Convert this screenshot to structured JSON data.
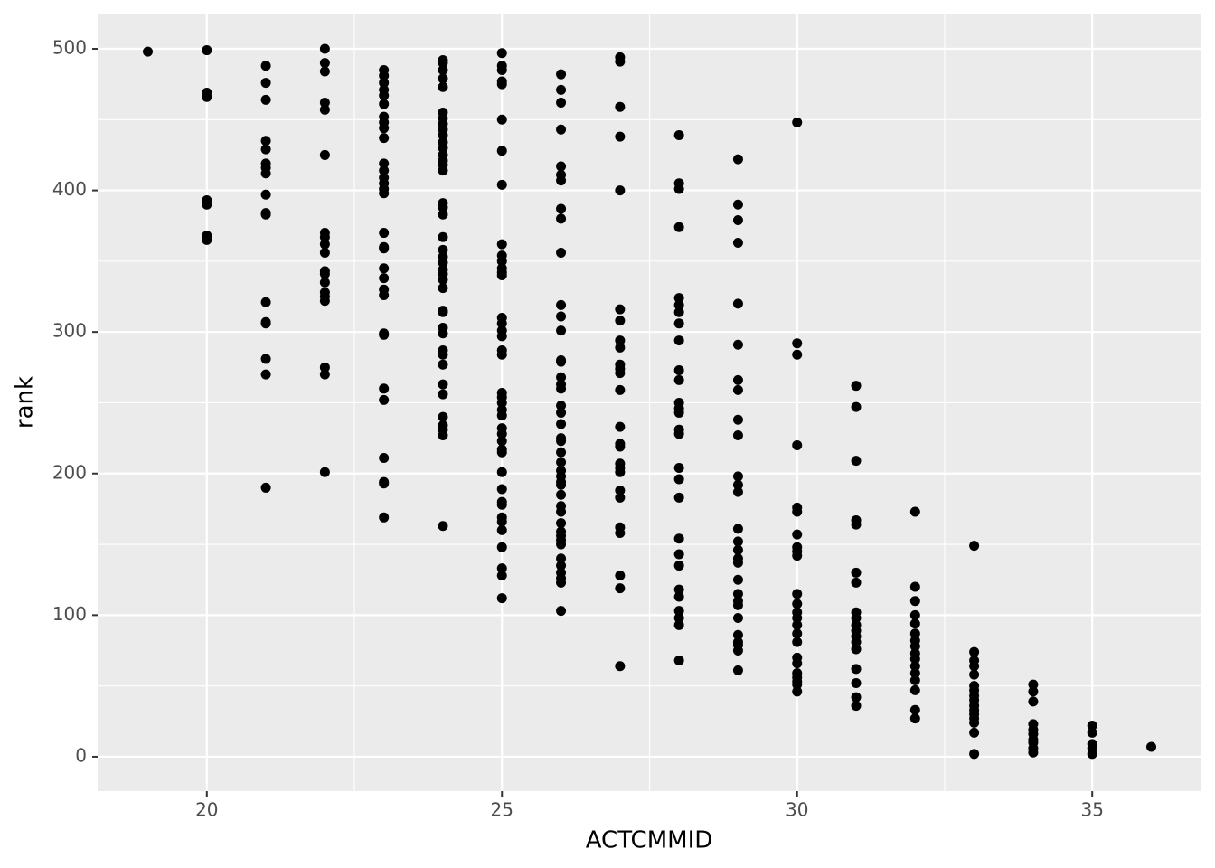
{
  "chart_data": {
    "type": "scatter",
    "x_label": "ACTCMMID",
    "y_label": "rank",
    "color": "#000000",
    "grid": true,
    "xlim": [
      18.15,
      36.85
    ],
    "ylim": [
      -24.3,
      524.9
    ],
    "xticks": [
      20,
      25,
      30,
      35
    ],
    "yticks": [
      0,
      100,
      200,
      300,
      400,
      500
    ],
    "x": [
      19,
      20,
      20,
      20,
      20,
      20,
      20,
      20,
      21,
      21,
      21,
      21,
      21,
      21,
      21,
      21,
      21,
      21,
      21,
      21,
      21,
      21,
      21,
      21,
      21,
      22,
      22,
      22,
      22,
      22,
      22,
      22,
      22,
      22,
      22,
      22,
      22,
      22,
      22,
      22,
      22,
      22,
      22,
      22,
      23,
      23,
      23,
      23,
      23,
      23,
      23,
      23,
      23,
      23,
      23,
      23,
      23,
      23,
      23,
      23,
      23,
      23,
      23,
      23,
      23,
      23,
      23,
      23,
      23,
      23,
      23,
      23,
      23,
      23,
      23,
      24,
      24,
      24,
      24,
      24,
      24,
      24,
      24,
      24,
      24,
      24,
      24,
      24,
      24,
      24,
      24,
      24,
      24,
      24,
      24,
      24,
      24,
      24,
      24,
      24,
      24,
      24,
      24,
      24,
      24,
      24,
      24,
      24,
      24,
      24,
      24,
      24,
      24,
      24,
      24,
      24,
      25,
      25,
      25,
      25,
      25,
      25,
      25,
      25,
      25,
      25,
      25,
      25,
      25,
      25,
      25,
      25,
      25,
      25,
      25,
      25,
      25,
      25,
      25,
      25,
      25,
      25,
      25,
      25,
      25,
      25,
      25,
      25,
      25,
      25,
      25,
      25,
      25,
      25,
      25,
      25,
      25,
      26,
      26,
      26,
      26,
      26,
      26,
      26,
      26,
      26,
      26,
      26,
      26,
      26,
      26,
      26,
      26,
      26,
      26,
      26,
      26,
      26,
      26,
      26,
      26,
      26,
      26,
      26,
      26,
      26,
      26,
      26,
      26,
      26,
      26,
      26,
      26,
      26,
      26,
      26,
      26,
      26,
      26,
      26,
      27,
      27,
      27,
      27,
      27,
      27,
      27,
      27,
      27,
      27,
      27,
      27,
      27,
      27,
      27,
      27,
      27,
      27,
      27,
      27,
      27,
      27,
      27,
      27,
      27,
      27,
      28,
      28,
      28,
      28,
      28,
      28,
      28,
      28,
      28,
      28,
      28,
      28,
      28,
      28,
      28,
      28,
      28,
      28,
      28,
      28,
      28,
      28,
      28,
      28,
      28,
      28,
      28,
      28,
      29,
      29,
      29,
      29,
      29,
      29,
      29,
      29,
      29,
      29,
      29,
      29,
      29,
      29,
      29,
      29,
      29,
      29,
      29,
      29,
      29,
      29,
      29,
      29,
      29,
      29,
      29,
      29,
      30,
      30,
      30,
      30,
      30,
      30,
      30,
      30,
      30,
      30,
      30,
      30,
      30,
      30,
      30,
      30,
      30,
      30,
      30,
      30,
      30,
      30,
      30,
      30,
      31,
      31,
      31,
      31,
      31,
      31,
      31,
      31,
      31,
      31,
      31,
      31,
      31,
      31,
      31,
      31,
      31,
      31,
      32,
      32,
      32,
      32,
      32,
      32,
      32,
      32,
      32,
      32,
      32,
      32,
      32,
      32,
      32,
      32,
      33,
      33,
      33,
      33,
      33,
      33,
      33,
      33,
      33,
      33,
      33,
      33,
      33,
      33,
      33,
      33,
      34,
      34,
      34,
      34,
      34,
      34,
      34,
      34,
      34,
      34,
      35,
      35,
      35,
      35,
      35,
      36
    ],
    "values": [
      498,
      499,
      469,
      466,
      393,
      390,
      368,
      365,
      488,
      476,
      464,
      435,
      429,
      419,
      416,
      412,
      397,
      384,
      383,
      321,
      307,
      306,
      281,
      270,
      190,
      500,
      490,
      484,
      462,
      457,
      425,
      370,
      367,
      362,
      356,
      343,
      341,
      335,
      328,
      325,
      322,
      275,
      270,
      201,
      485,
      481,
      476,
      471,
      467,
      461,
      452,
      448,
      444,
      437,
      419,
      414,
      409,
      405,
      401,
      398,
      370,
      360,
      359,
      345,
      338,
      330,
      326,
      299,
      298,
      260,
      252,
      211,
      194,
      193,
      169,
      492,
      490,
      485,
      479,
      473,
      455,
      451,
      447,
      443,
      439,
      434,
      430,
      425,
      421,
      418,
      414,
      391,
      388,
      383,
      367,
      358,
      353,
      349,
      344,
      341,
      337,
      331,
      315,
      314,
      303,
      299,
      287,
      284,
      277,
      263,
      256,
      240,
      234,
      231,
      227,
      163,
      497,
      488,
      485,
      477,
      475,
      450,
      428,
      404,
      362,
      354,
      350,
      345,
      342,
      340,
      310,
      306,
      301,
      297,
      287,
      284,
      257,
      254,
      250,
      245,
      241,
      232,
      228,
      223,
      217,
      215,
      201,
      189,
      180,
      178,
      169,
      166,
      160,
      148,
      133,
      128,
      112,
      482,
      471,
      462,
      443,
      417,
      411,
      407,
      387,
      380,
      356,
      319,
      311,
      301,
      280,
      279,
      268,
      263,
      260,
      248,
      243,
      235,
      225,
      223,
      215,
      208,
      202,
      198,
      194,
      192,
      185,
      177,
      173,
      165,
      159,
      156,
      153,
      150,
      140,
      135,
      130,
      126,
      123,
      103,
      494,
      491,
      459,
      438,
      400,
      316,
      308,
      294,
      289,
      277,
      274,
      271,
      259,
      233,
      221,
      219,
      207,
      204,
      201,
      188,
      183,
      162,
      158,
      128,
      119,
      64,
      439,
      405,
      401,
      374,
      324,
      319,
      314,
      306,
      294,
      273,
      266,
      250,
      246,
      243,
      231,
      228,
      204,
      196,
      183,
      154,
      143,
      135,
      118,
      113,
      103,
      98,
      93,
      68,
      422,
      390,
      379,
      363,
      320,
      291,
      266,
      259,
      238,
      227,
      198,
      192,
      187,
      161,
      152,
      146,
      140,
      137,
      125,
      115,
      110,
      107,
      98,
      86,
      81,
      79,
      75,
      61,
      448,
      292,
      284,
      220,
      176,
      173,
      157,
      148,
      145,
      142,
      115,
      108,
      102,
      98,
      93,
      87,
      81,
      70,
      66,
      59,
      56,
      53,
      51,
      46,
      262,
      247,
      209,
      167,
      164,
      130,
      123,
      102,
      98,
      93,
      89,
      85,
      81,
      76,
      62,
      52,
      42,
      36,
      173,
      120,
      110,
      100,
      94,
      87,
      82,
      78,
      73,
      69,
      64,
      59,
      54,
      47,
      33,
      27,
      149,
      74,
      68,
      64,
      58,
      50,
      47,
      43,
      40,
      36,
      33,
      30,
      27,
      24,
      17,
      2,
      51,
      46,
      39,
      23,
      19,
      16,
      12,
      10,
      6,
      3,
      22,
      17,
      9,
      6,
      2,
      7
    ]
  }
}
